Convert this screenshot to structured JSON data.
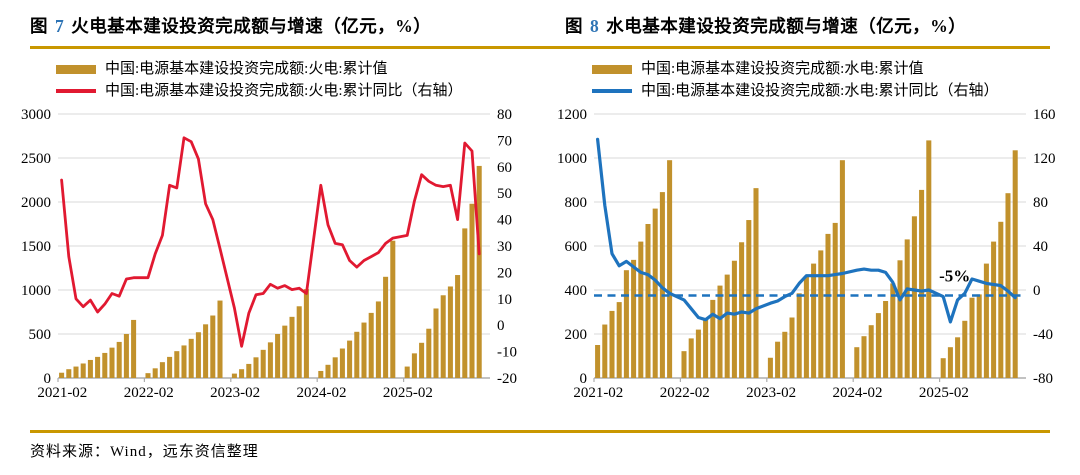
{
  "page": {
    "source_note": "资料来源：Wind，远东资信整理"
  },
  "colors": {
    "gold_bar": "#C1912C",
    "red_line": "#E11931",
    "blue_line": "#1E73BE",
    "title_number_blue": "#2E74B5",
    "gold_rule": "#C99700",
    "gridline": "#D9D9D9",
    "axis": "#ADADAD"
  },
  "charts": [
    {
      "id": "thermal",
      "title_prefix": "图",
      "title_number": "7",
      "title_text": "火电基本建设投资完成额与增速（亿元，%）",
      "legend": [
        {
          "type": "bar",
          "color": "#C1912C",
          "label": "中国:电源基本建设投资完成额:火电:累计值"
        },
        {
          "type": "line",
          "color": "#E11931",
          "label": "中国:电源基本建设投资完成额:火电:累计同比（右轴）"
        }
      ],
      "chart_data": {
        "type": "bar+line",
        "title": "火电基本建设投资完成额与增速（亿元，%）",
        "categories": [
          "2021-02",
          "2021-03",
          "2021-04",
          "2021-05",
          "2021-06",
          "2021-07",
          "2021-08",
          "2021-09",
          "2021-10",
          "2021-11",
          "2021-12",
          "2022-02",
          "2022-03",
          "2022-04",
          "2022-05",
          "2022-06",
          "2022-07",
          "2022-08",
          "2022-09",
          "2022-10",
          "2022-11",
          "2022-12",
          "2023-02",
          "2023-03",
          "2023-04",
          "2023-05",
          "2023-06",
          "2023-07",
          "2023-08",
          "2023-09",
          "2023-10",
          "2023-11",
          "2023-12",
          "2024-02",
          "2024-03",
          "2024-04",
          "2024-05",
          "2024-06",
          "2024-07",
          "2024-08",
          "2024-09",
          "2024-10",
          "2024-11",
          "2024-12",
          "2025-02",
          "2025-03",
          "2025-04",
          "2025-05",
          "2025-06",
          "2025-07",
          "2025-08",
          "2025-09",
          "2025-10",
          "2025-11",
          "2025-12"
        ],
        "x_tick_labels": [
          "2021-02",
          "2022-02",
          "2023-02",
          "2024-02",
          "2025-02"
        ],
        "x_tick_slots": [
          0,
          12,
          24,
          36,
          48
        ],
        "months_per_year": 11,
        "slots": 60,
        "left_axis": {
          "min": 0,
          "max": 3000,
          "step": 500
        },
        "right_axis": {
          "min": -20,
          "max": 80,
          "step": 10
        },
        "grid": true,
        "legend_position": "top-left",
        "series": [
          {
            "name": "中国:电源基本建设投资完成额:火电:累计值",
            "type": "bar",
            "axis": "left",
            "values": [
              60,
              100,
              130,
              165,
              205,
              240,
              285,
              345,
              410,
              500,
              660,
              55,
              110,
              180,
              240,
              305,
              370,
              445,
              520,
              610,
              710,
              880,
              50,
              100,
              160,
              235,
              320,
              405,
              500,
              595,
              695,
              815,
              1010,
              80,
              150,
              235,
              335,
              425,
              525,
              630,
              740,
              870,
              1150,
              1560,
              130,
              280,
              400,
              560,
              790,
              940,
              1040,
              1170,
              1700,
              1980,
              2410
            ]
          },
          {
            "name": "中国:电源基本建设投资完成额:火电:累计同比（右轴）",
            "type": "line",
            "axis": "right",
            "values": [
              55,
              26,
              10,
              7,
              9.5,
              5,
              8,
              12,
              11,
              17.5,
              18,
              18,
              27,
              34,
              53,
              52,
              71,
              69.5,
              63,
              46,
              40,
              29,
              6.5,
              -8,
              4.5,
              11.5,
              12,
              15.5,
              14,
              15,
              13.5,
              14,
              12,
              53,
              38,
              31,
              30.5,
              24.5,
              22,
              24.5,
              26,
              27.5,
              31,
              33,
              34,
              47,
              57,
              54.5,
              53,
              52.5,
              53,
              40,
              69,
              66,
              27
            ]
          }
        ]
      }
    },
    {
      "id": "hydro",
      "title_prefix": "图",
      "title_number": "8",
      "title_text": "水电基本建设投资完成额与增速（亿元，%）",
      "legend": [
        {
          "type": "bar",
          "color": "#C1912C",
          "label": "中国:电源基本建设投资完成额:水电:累计值"
        },
        {
          "type": "line",
          "color": "#1E73BE",
          "label": "中国:电源基本建设投资完成额:水电:累计同比（右轴）"
        }
      ],
      "chart_data": {
        "type": "bar+line",
        "title": "水电基本建设投资完成额与增速（亿元，%）",
        "categories": [
          "2021-02",
          "2021-03",
          "2021-04",
          "2021-05",
          "2021-06",
          "2021-07",
          "2021-08",
          "2021-09",
          "2021-10",
          "2021-11",
          "2021-12",
          "2022-02",
          "2022-03",
          "2022-04",
          "2022-05",
          "2022-06",
          "2022-07",
          "2022-08",
          "2022-09",
          "2022-10",
          "2022-11",
          "2022-12",
          "2023-02",
          "2023-03",
          "2023-04",
          "2023-05",
          "2023-06",
          "2023-07",
          "2023-08",
          "2023-09",
          "2023-10",
          "2023-11",
          "2023-12",
          "2024-02",
          "2024-03",
          "2024-04",
          "2024-05",
          "2024-06",
          "2024-07",
          "2024-08",
          "2024-09",
          "2024-10",
          "2024-11",
          "2024-12",
          "2025-02",
          "2025-03",
          "2025-04",
          "2025-05",
          "2025-06",
          "2025-07",
          "2025-08",
          "2025-09",
          "2025-10",
          "2025-11",
          "2025-12"
        ],
        "x_tick_labels": [
          "2021-02",
          "2022-02",
          "2023-02",
          "2024-02",
          "2025-02"
        ],
        "x_tick_slots": [
          0,
          12,
          24,
          36,
          48
        ],
        "months_per_year": 11,
        "slots": 60,
        "left_axis": {
          "min": 0,
          "max": 1200,
          "step": 200
        },
        "right_axis": {
          "min": -80,
          "max": 160,
          "step": 40
        },
        "grid": true,
        "legend_position": "top-left",
        "reference_line": {
          "axis": "right",
          "value": -5,
          "style": "dashed",
          "color": "#1E73BE",
          "label": "-5%"
        },
        "series": [
          {
            "name": "中国:电源基本建设投资完成额:水电:累计值",
            "type": "bar",
            "axis": "left",
            "values": [
              150,
              243,
              305,
              345,
              490,
              537,
              620,
              700,
              770,
              845,
              990,
              122,
              180,
              220,
              270,
              355,
              420,
              470,
              533,
              617,
              718,
              863,
              92,
              165,
              210,
              275,
              385,
              460,
              520,
              580,
              655,
              705,
              990,
              140,
              190,
              240,
              295,
              350,
              430,
              535,
              630,
              735,
              855,
              1080,
              90,
              140,
              185,
              260,
              365,
              380,
              520,
              620,
              710,
              840,
              1035
            ]
          },
          {
            "name": "中国:电源基本建设投资完成额:水电:累计同比（右轴）",
            "type": "line",
            "axis": "right",
            "values": [
              137,
              77,
              33,
              22,
              26,
              21,
              16,
              14,
              9,
              2,
              -3,
              -9,
              -17,
              -25,
              -27,
              -22,
              -26,
              -21,
              -22,
              -20,
              -21,
              -17,
              -12,
              -10,
              -6,
              -3,
              6,
              13,
              13,
              13,
              13,
              14,
              15,
              18,
              19,
              18,
              18,
              16,
              7,
              -9,
              1,
              0,
              -1,
              0,
              -6,
              -29,
              -9,
              -3,
              10,
              8,
              6,
              5,
              4,
              -1,
              -7
            ]
          }
        ]
      }
    }
  ]
}
